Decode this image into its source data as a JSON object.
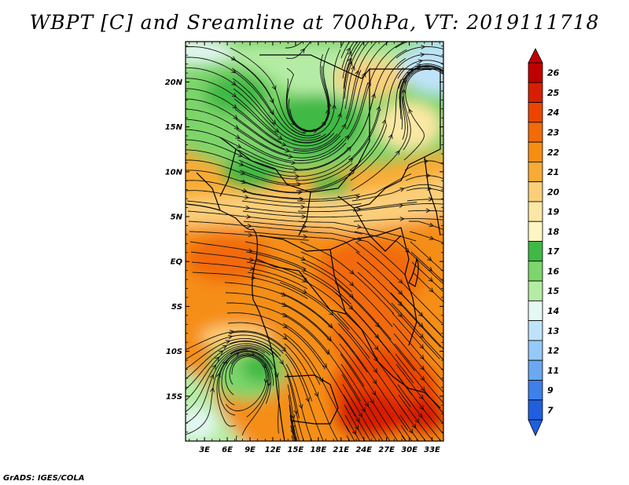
{
  "title": "WBPT [C] and Sreamline at 700hPa, VT: 2019111718",
  "footer": "GrADS: IGES/COLA",
  "map": {
    "lat_labels": [
      "20N",
      "15N",
      "10N",
      "5N",
      "EQ",
      "5S",
      "10S",
      "15S"
    ],
    "lat_values": [
      20,
      15,
      10,
      5,
      0,
      -5,
      -10,
      -15
    ],
    "lon_labels": [
      "3E",
      "6E",
      "9E",
      "12E",
      "15E",
      "18E",
      "21E",
      "24E",
      "27E",
      "30E",
      "33E"
    ],
    "lon_values": [
      3,
      6,
      9,
      12,
      15,
      18,
      21,
      24,
      27,
      30,
      33
    ],
    "lat_range": [
      -20,
      24.5
    ],
    "lon_range": [
      0.5,
      34.5
    ]
  },
  "colorbar": {
    "labels": [
      "26",
      "25",
      "24",
      "23",
      "22",
      "21",
      "20",
      "19",
      "18",
      "17",
      "16",
      "15",
      "14",
      "13",
      "12",
      "11",
      "9",
      "7"
    ],
    "colors": [
      "#c00000",
      "#d81e00",
      "#ec4400",
      "#f26a0a",
      "#f58e12",
      "#f8ab35",
      "#fbcf7a",
      "#fce8a4",
      "#fdf5c2",
      "#3fb944",
      "#7dd56b",
      "#b5eca5",
      "#e4f8f4",
      "#bfe3fa",
      "#95c9f7",
      "#6aa8f2",
      "#3e7fea",
      "#1f5fdf"
    ]
  }
}
